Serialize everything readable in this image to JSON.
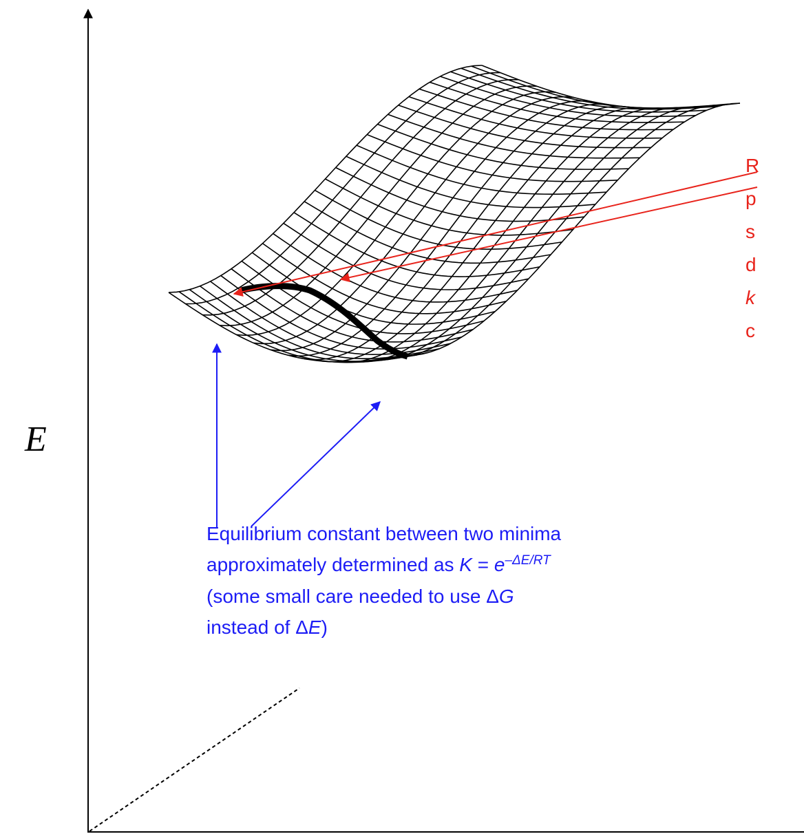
{
  "axis_label": "E",
  "red_note": {
    "lines": [
      "R",
      "p",
      "s",
      "d",
      "k",
      "c"
    ]
  },
  "blue_note": {
    "lines": [
      [
        "Equilibrium constant between two minima"
      ],
      [
        "approximately determined as ",
        "K",
        " = ",
        "e",
        "–ΔE/RT"
      ],
      [
        "(some small care needed to use Δ",
        "G"
      ],
      [
        "instead of Δ",
        "E",
        ")"
      ]
    ]
  }
}
